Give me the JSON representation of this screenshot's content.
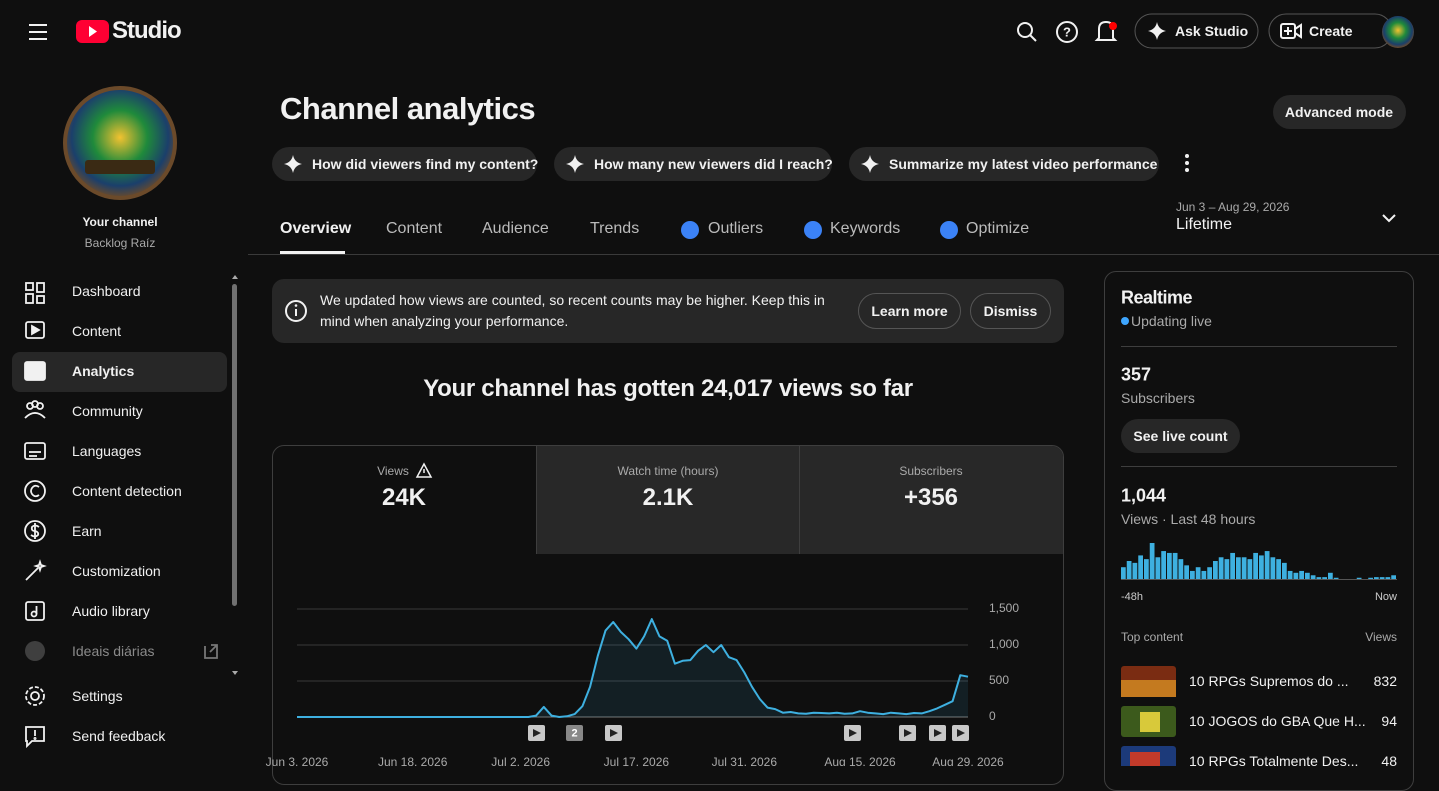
{
  "header": {
    "logo_text": "Studio",
    "ask_studio": "Ask Studio",
    "create": "Create"
  },
  "sidebar": {
    "channel_label": "Your channel",
    "channel_name": "Backlog Raíz",
    "nav": [
      "Dashboard",
      "Content",
      "Analytics",
      "Community",
      "Languages",
      "Content detection",
      "Earn",
      "Customization",
      "Audio library",
      "Ideais diárias",
      "Settings",
      "Send feedback"
    ]
  },
  "page": {
    "title": "Channel analytics",
    "advanced_mode": "Advanced mode",
    "prompts": [
      "How did viewers find my content?",
      "How many new viewers did I reach?",
      "Summarize my latest video performance"
    ],
    "tabs": [
      "Overview",
      "Content",
      "Audience",
      "Trends",
      "Outliers",
      "Keywords",
      "Optimize"
    ],
    "date_range": "Jun 3 – Aug 29, 2026",
    "period": "Lifetime"
  },
  "notice": {
    "text": "We updated how views are counted, so recent counts may be higher. Keep this in mind when analyzing your performance.",
    "learn_more": "Learn more",
    "dismiss": "Dismiss"
  },
  "summary": "Your channel has gotten 24,017 views so far",
  "metrics": [
    {
      "label": "Views",
      "value": "24K"
    },
    {
      "label": "Watch time (hours)",
      "value": "2.1K"
    },
    {
      "label": "Subscribers",
      "value": "+356"
    }
  ],
  "chart_data": {
    "type": "line",
    "color": "#3eb0e0",
    "grid": true,
    "annotation": "2",
    "x": [
      "Jun 3, 2026",
      "Jun 4, 2026",
      "Jun 5, 2026",
      "Jun 6, 2026",
      "Jun 7, 2026",
      "Jun 8, 2026",
      "Jun 9, 2026",
      "Jun 10, 2026",
      "Jun 11, 2026",
      "Jun 12, 2026",
      "Jun 13, 2026",
      "Jun 14, 2026",
      "Jun 15, 2026",
      "Jun 16, 2026",
      "Jun 17, 2026",
      "Jun 18, 2026",
      "Jun 19, 2026",
      "Jun 20, 2026",
      "Jun 21, 2026",
      "Jun 22, 2026",
      "Jun 23, 2026",
      "Jun 24, 2026",
      "Jun 25, 2026",
      "Jun 26, 2026",
      "Jun 27, 2026",
      "Jun 28, 2026",
      "Jun 29, 2026",
      "Jun 30, 2026",
      "Jul 1, 2026",
      "Jul 2, 2026",
      "Jul 3, 2026",
      "Jul 4, 2026",
      "Jul 5, 2026",
      "Jul 6, 2026",
      "Jul 7, 2026",
      "Jul 8, 2026",
      "Jul 9, 2026",
      "Jul 10, 2026",
      "Jul 11, 2026",
      "Jul 12, 2026",
      "Jul 13, 2026",
      "Jul 14, 2026",
      "Jul 15, 2026",
      "Jul 16, 2026",
      "Jul 17, 2026",
      "Jul 18, 2026",
      "Jul 19, 2026",
      "Jul 20, 2026",
      "Jul 21, 2026",
      "Jul 22, 2026",
      "Jul 23, 2026",
      "Jul 24, 2026",
      "Jul 25, 2026",
      "Jul 26, 2026",
      "Jul 27, 2026",
      "Jul 28, 2026",
      "Jul 29, 2026",
      "Jul 30, 2026",
      "Jul 31, 2026",
      "Aug 1, 2026",
      "Aug 2, 2026",
      "Aug 3, 2026",
      "Aug 4, 2026",
      "Aug 5, 2026",
      "Aug 6, 2026",
      "Aug 7, 2026",
      "Aug 8, 2026",
      "Aug 9, 2026",
      "Aug 10, 2026",
      "Aug 11, 2026",
      "Aug 12, 2026",
      "Aug 13, 2026",
      "Aug 14, 2026",
      "Aug 15, 2026",
      "Aug 16, 2026",
      "Aug 17, 2026",
      "Aug 18, 2026",
      "Aug 19, 2026",
      "Aug 20, 2026",
      "Aug 21, 2026",
      "Aug 22, 2026",
      "Aug 23, 2026",
      "Aug 24, 2026",
      "Aug 25, 2026",
      "Aug 26, 2026",
      "Aug 27, 2026",
      "Aug 28, 2026",
      "Aug 29, 2026"
    ],
    "values": [
      0,
      0,
      0,
      0,
      0,
      0,
      0,
      0,
      0,
      0,
      0,
      0,
      0,
      0,
      0,
      0,
      0,
      0,
      0,
      0,
      0,
      0,
      0,
      0,
      0,
      0,
      0,
      0,
      0,
      0,
      0,
      20,
      140,
      20,
      0,
      10,
      40,
      150,
      420,
      850,
      1200,
      1320,
      1180,
      1080,
      950,
      1120,
      1360,
      1120,
      1060,
      740,
      780,
      790,
      920,
      1000,
      900,
      1000,
      830,
      790,
      620,
      420,
      250,
      130,
      110,
      60,
      70,
      50,
      45,
      60,
      55,
      50,
      60,
      45,
      50,
      80,
      60,
      50,
      40,
      60,
      50,
      40,
      55,
      50,
      80,
      120,
      170,
      220,
      580,
      560
    ],
    "xticks": [
      "Jun 3, 2026",
      "Jun 18, 2026",
      "Jul 2, 2026",
      "Jul 17, 2026",
      "Jul 31, 2026",
      "Aug 15, 2026",
      "Aug 29, 2026"
    ],
    "ylim": [
      0,
      1500
    ],
    "yticks": [
      0,
      500,
      {
        "value": 1000,
        "label": "1,000"
      },
      {
        "value": 1500,
        "label": "1,500"
      }
    ]
  },
  "realtime": {
    "title": "Realtime",
    "status": "Updating live",
    "subscribers": "357",
    "subscribers_label": "Subscribers",
    "see_live_count": "See live count",
    "views": "1,044",
    "views_label": "Views · Last 48 hours",
    "chart": {
      "type": "bar",
      "color": "#3eb0e0",
      "values": [
        19,
        29,
        26,
        38,
        32,
        58,
        35,
        45,
        42,
        42,
        32,
        22,
        13,
        19,
        13,
        19,
        29,
        35,
        32,
        42,
        35,
        35,
        32,
        42,
        38,
        45,
        35,
        32,
        26,
        13,
        10,
        13,
        10,
        6,
        3,
        3,
        10,
        2,
        0,
        0,
        0,
        2,
        0,
        2,
        3,
        3,
        3,
        6
      ],
      "start_label": "-48h",
      "end_label": "Now"
    },
    "top_content_label": "Top content",
    "views_column": "Views",
    "top_content": [
      {
        "title": "10 RPGs Supremos do ...",
        "views": "832"
      },
      {
        "title": "10 JOGOS do GBA Que H...",
        "views": "94"
      },
      {
        "title": "10 RPGs Totalmente Des...",
        "views": "48"
      }
    ]
  }
}
